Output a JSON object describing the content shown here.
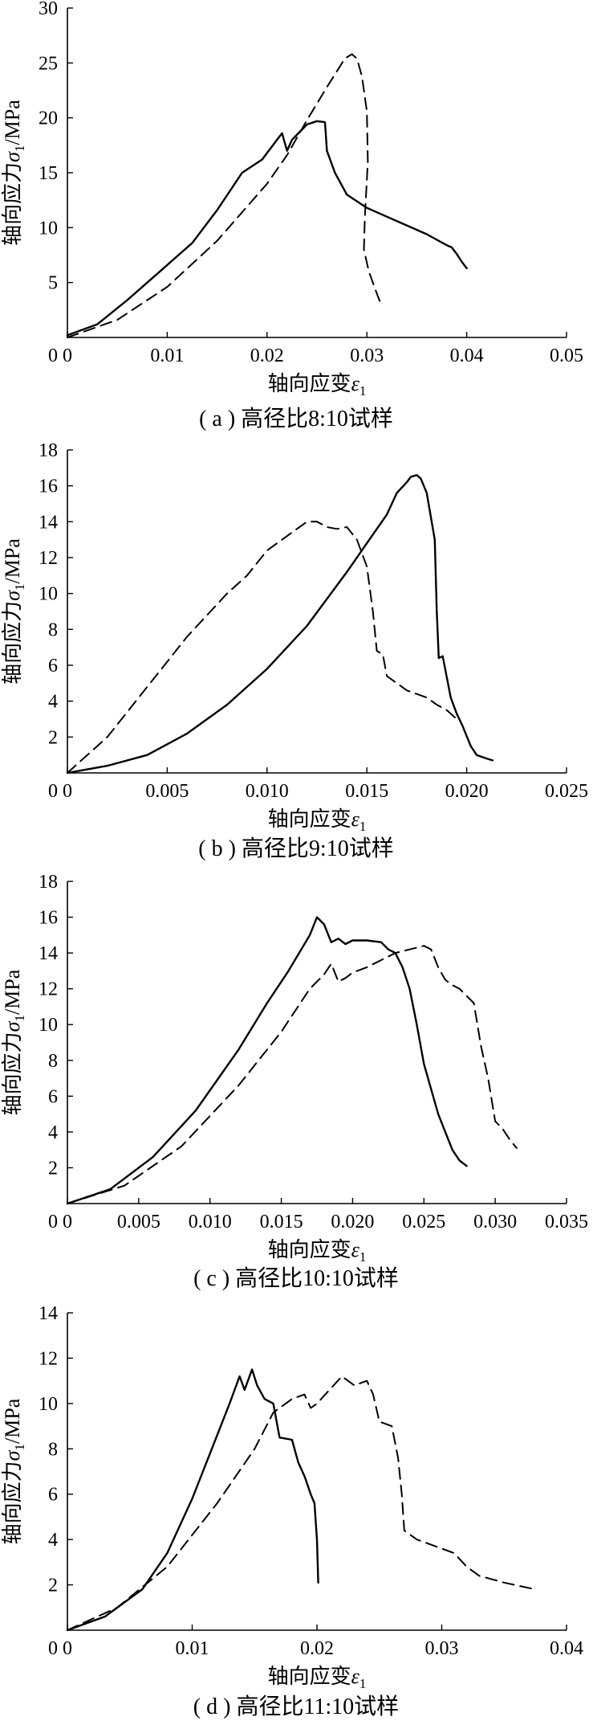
{
  "chart_data": [
    {
      "type": "line",
      "caption": "( a ) 高径比8:10试样",
      "xlabel": "轴向应变",
      "xlabel_symbol": "ε",
      "xlabel_sub": "1",
      "ylabel": "轴向应力",
      "ylabel_symbol": "σ",
      "ylabel_sub": "1",
      "ylabel_unit": "/MPa",
      "xlim": [
        0,
        0.05
      ],
      "ylim": [
        0,
        30
      ],
      "xticks": [
        "0",
        "0.01",
        "0.02",
        "0.03",
        "0.04",
        "0.05"
      ],
      "xtick_values": [
        0,
        0.01,
        0.02,
        0.03,
        0.04,
        0.05
      ],
      "yticks": [
        "5",
        "10",
        "15",
        "20",
        "25",
        "30"
      ],
      "ytick_values": [
        5,
        10,
        15,
        20,
        25,
        30
      ],
      "series": [
        {
          "style": "solid",
          "points": [
            [
              0,
              0.2
            ],
            [
              0.003,
              1.2
            ],
            [
              0.006,
              3.4
            ],
            [
              0.008,
              5.0
            ],
            [
              0.0095,
              6.2
            ],
            [
              0.011,
              7.4
            ],
            [
              0.0125,
              8.6
            ],
            [
              0.015,
              11.6
            ],
            [
              0.0175,
              15.0
            ],
            [
              0.0195,
              16.2
            ],
            [
              0.021,
              18.0
            ],
            [
              0.0215,
              18.6
            ],
            [
              0.022,
              17.0
            ],
            [
              0.0225,
              18.0
            ],
            [
              0.024,
              19.4
            ],
            [
              0.025,
              19.7
            ],
            [
              0.0258,
              19.6
            ],
            [
              0.026,
              17.0
            ],
            [
              0.0268,
              15.0
            ],
            [
              0.028,
              13.0
            ],
            [
              0.03,
              11.8
            ],
            [
              0.032,
              11.0
            ],
            [
              0.034,
              10.2
            ],
            [
              0.036,
              9.4
            ],
            [
              0.038,
              8.4
            ],
            [
              0.0385,
              8.2
            ],
            [
              0.039,
              7.6
            ],
            [
              0.0395,
              6.9
            ],
            [
              0.04,
              6.3
            ]
          ]
        },
        {
          "style": "dashed",
          "points": [
            [
              0,
              0
            ],
            [
              0.005,
              1.6
            ],
            [
              0.01,
              4.6
            ],
            [
              0.015,
              8.8
            ],
            [
              0.02,
              14.0
            ],
            [
              0.022,
              16.6
            ],
            [
              0.024,
              19.8
            ],
            [
              0.026,
              22.8
            ],
            [
              0.0278,
              25.4
            ],
            [
              0.0285,
              25.8
            ],
            [
              0.029,
              25.4
            ],
            [
              0.0295,
              23.8
            ],
            [
              0.03,
              20.6
            ],
            [
              0.0301,
              16.0
            ],
            [
              0.0298,
              11.0
            ],
            [
              0.0297,
              8.0
            ],
            [
              0.0302,
              6.0
            ],
            [
              0.031,
              4.0
            ],
            [
              0.0315,
              2.8
            ]
          ]
        }
      ]
    },
    {
      "type": "line",
      "caption": "( b ) 高径比9:10试样",
      "xlabel": "轴向应变",
      "xlabel_symbol": "ε",
      "xlabel_sub": "1",
      "ylabel": "轴向应力",
      "ylabel_symbol": "σ",
      "ylabel_sub": "1",
      "ylabel_unit": "/MPa",
      "xlim": [
        0,
        0.025
      ],
      "ylim": [
        0,
        18
      ],
      "xticks": [
        "0",
        "0.005",
        "0.010",
        "0.015",
        "0.020",
        "0.025"
      ],
      "xtick_values": [
        0,
        0.005,
        0.01,
        0.015,
        0.02,
        0.025
      ],
      "yticks": [
        "2",
        "4",
        "6",
        "8",
        "10",
        "12",
        "14",
        "16",
        "18"
      ],
      "ytick_values": [
        2,
        4,
        6,
        8,
        10,
        12,
        14,
        16,
        18
      ],
      "series": [
        {
          "style": "solid",
          "points": [
            [
              0,
              0
            ],
            [
              0.002,
              0.4
            ],
            [
              0.004,
              1.0
            ],
            [
              0.006,
              2.2
            ],
            [
              0.008,
              3.8
            ],
            [
              0.01,
              5.8
            ],
            [
              0.012,
              8.2
            ],
            [
              0.014,
              11.2
            ],
            [
              0.015,
              12.8
            ],
            [
              0.016,
              14.4
            ],
            [
              0.0165,
              15.6
            ],
            [
              0.017,
              16.2
            ],
            [
              0.0172,
              16.5
            ],
            [
              0.0175,
              16.6
            ],
            [
              0.0177,
              16.4
            ],
            [
              0.018,
              15.6
            ],
            [
              0.0184,
              13.0
            ],
            [
              0.0185,
              9.0
            ],
            [
              0.0186,
              6.4
            ],
            [
              0.0188,
              6.5
            ],
            [
              0.0192,
              4.2
            ],
            [
              0.0195,
              3.3
            ],
            [
              0.0198,
              2.6
            ],
            [
              0.0202,
              1.5
            ],
            [
              0.0205,
              1.0
            ],
            [
              0.021,
              0.8
            ],
            [
              0.0213,
              0.7
            ]
          ]
        },
        {
          "style": "dashed",
          "points": [
            [
              0,
              0
            ],
            [
              0.002,
              2.0
            ],
            [
              0.004,
              4.8
            ],
            [
              0.006,
              7.6
            ],
            [
              0.008,
              10.0
            ],
            [
              0.009,
              11.0
            ],
            [
              0.01,
              12.4
            ],
            [
              0.011,
              13.2
            ],
            [
              0.012,
              14.0
            ],
            [
              0.0125,
              14.0
            ],
            [
              0.013,
              13.7
            ],
            [
              0.0135,
              13.6
            ],
            [
              0.014,
              13.7
            ],
            [
              0.0145,
              13.0
            ],
            [
              0.015,
              11.5
            ],
            [
              0.0153,
              9.0
            ],
            [
              0.0155,
              6.8
            ],
            [
              0.0158,
              6.6
            ],
            [
              0.016,
              5.4
            ],
            [
              0.0165,
              5.0
            ],
            [
              0.017,
              4.6
            ],
            [
              0.018,
              4.2
            ],
            [
              0.0185,
              3.8
            ],
            [
              0.019,
              3.5
            ],
            [
              0.0195,
              3.0
            ]
          ]
        }
      ]
    },
    {
      "type": "line",
      "caption": "( c ) 高径比10:10试样",
      "xlabel": "轴向应变",
      "xlabel_symbol": "ε",
      "xlabel_sub": "1",
      "ylabel": "轴向应力",
      "ylabel_symbol": "σ",
      "ylabel_sub": "1",
      "ylabel_unit": "/MPa",
      "xlim": [
        0,
        0.035
      ],
      "ylim": [
        0,
        18
      ],
      "xticks": [
        "0",
        "0.005",
        "0.010",
        "0.015",
        "0.020",
        "0.025",
        "0.030",
        "0.035"
      ],
      "xtick_values": [
        0,
        0.005,
        0.01,
        0.015,
        0.02,
        0.025,
        0.03,
        0.035
      ],
      "yticks": [
        "2",
        "4",
        "6",
        "8",
        "10",
        "12",
        "14",
        "16",
        "18"
      ],
      "ytick_values": [
        2,
        4,
        6,
        8,
        10,
        12,
        14,
        16,
        18
      ],
      "series": [
        {
          "style": "solid",
          "points": [
            [
              0,
              0
            ],
            [
              0.003,
              0.8
            ],
            [
              0.006,
              2.6
            ],
            [
              0.009,
              5.2
            ],
            [
              0.012,
              8.6
            ],
            [
              0.014,
              11.2
            ],
            [
              0.0155,
              13.0
            ],
            [
              0.017,
              15.0
            ],
            [
              0.0175,
              16.0
            ],
            [
              0.018,
              15.6
            ],
            [
              0.0185,
              14.6
            ],
            [
              0.019,
              14.8
            ],
            [
              0.0195,
              14.5
            ],
            [
              0.02,
              14.7
            ],
            [
              0.021,
              14.7
            ],
            [
              0.022,
              14.6
            ],
            [
              0.0225,
              14.2
            ],
            [
              0.023,
              14.0
            ],
            [
              0.0235,
              13.2
            ],
            [
              0.024,
              12.0
            ],
            [
              0.0245,
              10.0
            ],
            [
              0.025,
              7.8
            ],
            [
              0.0255,
              6.4
            ],
            [
              0.026,
              5.0
            ],
            [
              0.0265,
              4.0
            ],
            [
              0.027,
              3.0
            ],
            [
              0.0275,
              2.4
            ],
            [
              0.028,
              2.1
            ]
          ]
        },
        {
          "style": "dashed",
          "points": [
            [
              0,
              0
            ],
            [
              0.004,
              1.0
            ],
            [
              0.008,
              3.2
            ],
            [
              0.012,
              6.6
            ],
            [
              0.015,
              9.6
            ],
            [
              0.017,
              12.0
            ],
            [
              0.018,
              12.8
            ],
            [
              0.0185,
              13.4
            ],
            [
              0.019,
              12.4
            ],
            [
              0.0195,
              12.6
            ],
            [
              0.02,
              12.9
            ],
            [
              0.021,
              13.2
            ],
            [
              0.022,
              13.6
            ],
            [
              0.023,
              14.0
            ],
            [
              0.024,
              14.2
            ],
            [
              0.025,
              14.4
            ],
            [
              0.0255,
              14.2
            ],
            [
              0.026,
              13.2
            ],
            [
              0.0265,
              12.5
            ],
            [
              0.027,
              12.2
            ],
            [
              0.0275,
              12.0
            ],
            [
              0.028,
              11.6
            ],
            [
              0.0285,
              11.2
            ],
            [
              0.029,
              8.8
            ],
            [
              0.0295,
              7.0
            ],
            [
              0.03,
              4.6
            ],
            [
              0.0305,
              4.2
            ],
            [
              0.031,
              3.6
            ],
            [
              0.0315,
              3.1
            ]
          ]
        }
      ]
    },
    {
      "type": "line",
      "caption": "( d ) 高径比11:10试样",
      "xlabel": "轴向应变",
      "xlabel_symbol": "ε",
      "xlabel_sub": "1",
      "ylabel": "轴向应力",
      "ylabel_symbol": "σ",
      "ylabel_sub": "1",
      "ylabel_unit": "/MPa",
      "xlim": [
        0,
        0.04
      ],
      "ylim": [
        0,
        14
      ],
      "xticks": [
        "0",
        "0.01",
        "0.02",
        "0.03",
        "0.04"
      ],
      "xtick_values": [
        0,
        0.01,
        0.02,
        0.03,
        0.04
      ],
      "yticks": [
        "2",
        "4",
        "6",
        "8",
        "10",
        "12",
        "14"
      ],
      "ytick_values": [
        2,
        4,
        6,
        8,
        10,
        12,
        14
      ],
      "series": [
        {
          "style": "solid",
          "points": [
            [
              0,
              0
            ],
            [
              0.003,
              0.6
            ],
            [
              0.006,
              1.8
            ],
            [
              0.008,
              3.4
            ],
            [
              0.01,
              5.8
            ],
            [
              0.012,
              8.6
            ],
            [
              0.013,
              10.0
            ],
            [
              0.0138,
              11.2
            ],
            [
              0.0142,
              10.6
            ],
            [
              0.0148,
              11.5
            ],
            [
              0.0152,
              10.8
            ],
            [
              0.0158,
              10.2
            ],
            [
              0.0165,
              10.0
            ],
            [
              0.017,
              8.5
            ],
            [
              0.018,
              8.4
            ],
            [
              0.0185,
              7.4
            ],
            [
              0.019,
              6.8
            ],
            [
              0.0195,
              6.0
            ],
            [
              0.0198,
              5.6
            ],
            [
              0.02,
              4.0
            ],
            [
              0.0201,
              2.1
            ]
          ]
        },
        {
          "style": "dashed",
          "points": [
            [
              0,
              0
            ],
            [
              0.004,
              1.0
            ],
            [
              0.008,
              2.8
            ],
            [
              0.012,
              5.6
            ],
            [
              0.015,
              8.0
            ],
            [
              0.0165,
              9.6
            ],
            [
              0.018,
              10.2
            ],
            [
              0.019,
              10.4
            ],
            [
              0.0195,
              9.8
            ],
            [
              0.02,
              10.0
            ],
            [
              0.021,
              10.6
            ],
            [
              0.022,
              11.2
            ],
            [
              0.023,
              10.8
            ],
            [
              0.024,
              11.0
            ],
            [
              0.0245,
              10.4
            ],
            [
              0.025,
              9.2
            ],
            [
              0.026,
              9.0
            ],
            [
              0.0265,
              7.6
            ],
            [
              0.0268,
              6.0
            ],
            [
              0.027,
              4.4
            ],
            [
              0.028,
              4.0
            ],
            [
              0.03,
              3.6
            ],
            [
              0.031,
              3.4
            ],
            [
              0.032,
              2.8
            ],
            [
              0.033,
              2.4
            ],
            [
              0.035,
              2.1
            ],
            [
              0.0375,
              1.8
            ]
          ]
        }
      ]
    }
  ]
}
